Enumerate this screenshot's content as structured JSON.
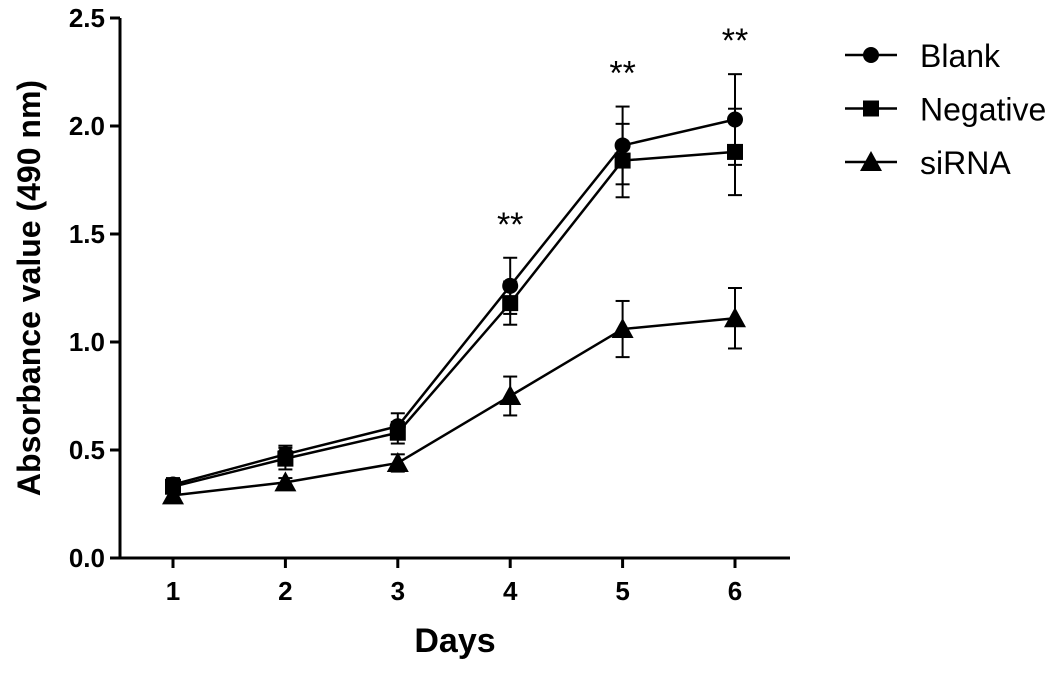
{
  "chart_data": {
    "type": "line",
    "title": "",
    "xlabel": "Days",
    "ylabel": "Absorbance value (490 nm)",
    "x": [
      1,
      2,
      3,
      4,
      5,
      6
    ],
    "xticks": [
      "1",
      "2",
      "3",
      "4",
      "5",
      "6"
    ],
    "ylim": [
      0,
      2.5
    ],
    "yticks": [
      "0.0",
      "0.5",
      "1.0",
      "1.5",
      "2.0",
      "2.5"
    ],
    "grid": false,
    "legend_position": "top-right",
    "series": [
      {
        "name": "Blank",
        "marker": "circle",
        "values": [
          0.34,
          0.48,
          0.61,
          1.26,
          1.91,
          2.03
        ],
        "errors": [
          0.03,
          0.04,
          0.06,
          0.13,
          0.18,
          0.21
        ]
      },
      {
        "name": "Negative",
        "marker": "square",
        "values": [
          0.33,
          0.46,
          0.58,
          1.18,
          1.84,
          1.88
        ],
        "errors": [
          0.03,
          0.05,
          0.05,
          0.1,
          0.17,
          0.2
        ]
      },
      {
        "name": "siRNA",
        "marker": "triangle",
        "values": [
          0.29,
          0.35,
          0.44,
          0.75,
          1.06,
          1.11
        ],
        "errors": [
          0.02,
          0.02,
          0.04,
          0.09,
          0.13,
          0.14
        ]
      }
    ],
    "annotations": [
      {
        "x": 4,
        "text": "**"
      },
      {
        "x": 5,
        "text": "**"
      },
      {
        "x": 6,
        "text": "**"
      }
    ],
    "color": "#000000"
  }
}
